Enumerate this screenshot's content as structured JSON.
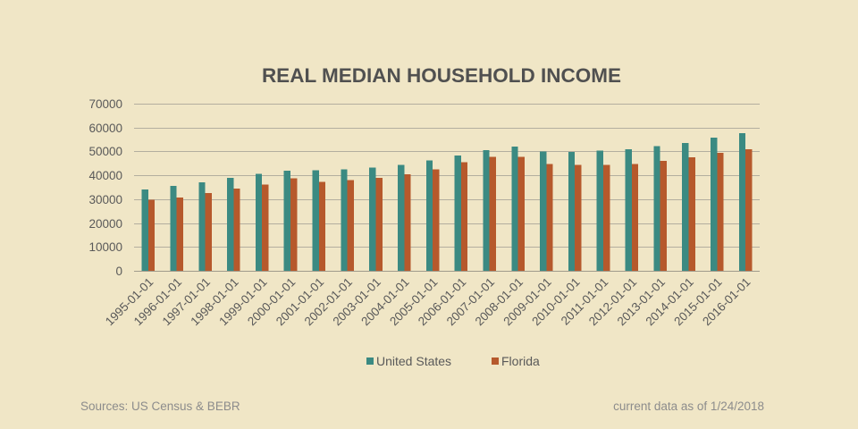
{
  "chart_data": {
    "type": "bar",
    "title": "REAL MEDIAN HOUSEHOLD INCOME",
    "categories": [
      "1995-01-01",
      "1996-01-01",
      "1997-01-01",
      "1998-01-01",
      "1999-01-01",
      "2000-01-01",
      "2001-01-01",
      "2002-01-01",
      "2003-01-01",
      "2004-01-01",
      "2005-01-01",
      "2006-01-01",
      "2007-01-01",
      "2008-01-01",
      "2009-01-01",
      "2010-01-01",
      "2011-01-01",
      "2012-01-01",
      "2013-01-01",
      "2014-01-01",
      "2015-01-01",
      "2016-01-01"
    ],
    "series": [
      {
        "name": "United States",
        "color": "#3B8A82",
        "values": [
          34100,
          35500,
          37000,
          38900,
          40700,
          42000,
          42200,
          42400,
          43300,
          44300,
          46300,
          48200,
          50500,
          52000,
          50000,
          49800,
          50300,
          51000,
          52200,
          53600,
          55800,
          57600
        ]
      },
      {
        "name": "Florida",
        "color": "#B6592C",
        "values": [
          29700,
          30700,
          32500,
          34500,
          36100,
          38800,
          37300,
          38000,
          39000,
          40500,
          42400,
          45500,
          47800,
          47800,
          44700,
          44400,
          44300,
          44800,
          46100,
          47500,
          49400,
          50900
        ]
      }
    ],
    "ylim": [
      0,
      70000
    ],
    "yticks": [
      0,
      10000,
      20000,
      30000,
      40000,
      50000,
      60000,
      70000
    ],
    "grid": true,
    "legend": "bottom"
  },
  "footer": {
    "source": "Sources: US Census & BEBR",
    "note": "current data as of 1/24/2018"
  },
  "colors": {
    "background": "#F0E6C6",
    "text": "#595959"
  }
}
